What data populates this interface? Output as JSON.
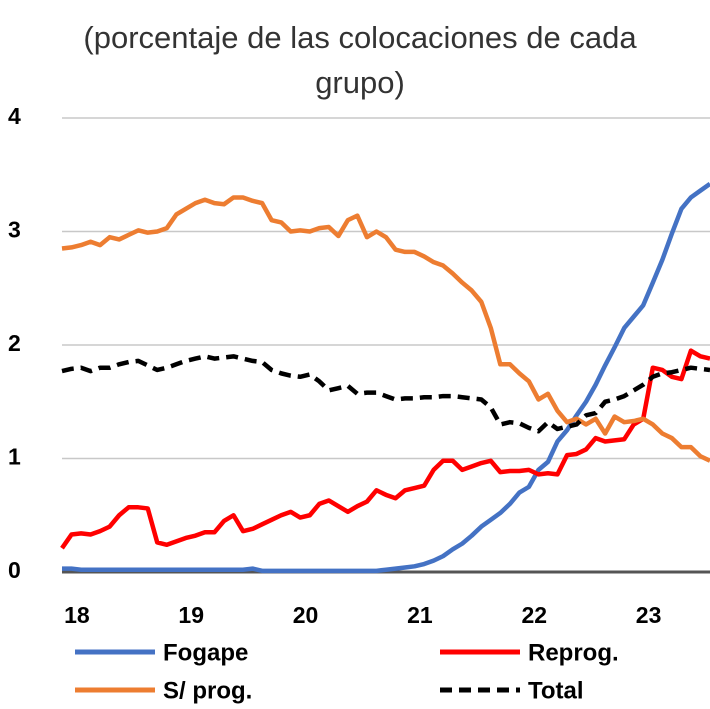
{
  "chart_data": {
    "type": "line",
    "title": "(porcentaje de las colocaciones de cada grupo)",
    "x": [
      18,
      18.083,
      18.167,
      18.25,
      18.333,
      18.417,
      18.5,
      18.583,
      18.667,
      18.75,
      18.833,
      18.917,
      19,
      19.083,
      19.167,
      19.25,
      19.333,
      19.417,
      19.5,
      19.583,
      19.667,
      19.75,
      19.833,
      19.917,
      20,
      20.083,
      20.167,
      20.25,
      20.333,
      20.417,
      20.5,
      20.583,
      20.667,
      20.75,
      20.833,
      20.917,
      21,
      21.083,
      21.167,
      21.25,
      21.333,
      21.417,
      21.5,
      21.583,
      21.667,
      21.75,
      21.833,
      21.917,
      22,
      22.083,
      22.167,
      22.25,
      22.333,
      22.417,
      22.5,
      22.583,
      22.667,
      22.75,
      22.833,
      22.917,
      23,
      23.083,
      23.167,
      23.25,
      23.333,
      23.417,
      23.5,
      23.583,
      23.667
    ],
    "series": [
      {
        "name": "Fogape",
        "color": "#4472c4",
        "values": [
          0.03,
          0.03,
          0.02,
          0.02,
          0.02,
          0.02,
          0.02,
          0.02,
          0.02,
          0.02,
          0.02,
          0.02,
          0.02,
          0.02,
          0.02,
          0.02,
          0.02,
          0.02,
          0.02,
          0.02,
          0.03,
          0.01,
          0.01,
          0.01,
          0.01,
          0.01,
          0.01,
          0.01,
          0.01,
          0.01,
          0.01,
          0.01,
          0.01,
          0.01,
          0.02,
          0.03,
          0.04,
          0.05,
          0.07,
          0.1,
          0.14,
          0.2,
          0.25,
          0.32,
          0.4,
          0.46,
          0.52,
          0.6,
          0.7,
          0.75,
          0.9,
          0.97,
          1.15,
          1.25,
          1.38,
          1.5,
          1.65,
          1.82,
          1.98,
          2.15,
          2.25,
          2.35,
          2.55,
          2.75,
          2.98,
          3.2,
          3.3,
          3.36,
          3.42
        ]
      },
      {
        "name": "Reprog.",
        "color": "#ff0000",
        "values": [
          0.21,
          0.33,
          0.34,
          0.33,
          0.36,
          0.4,
          0.5,
          0.57,
          0.57,
          0.56,
          0.26,
          0.24,
          0.27,
          0.3,
          0.32,
          0.35,
          0.35,
          0.45,
          0.5,
          0.36,
          0.38,
          0.42,
          0.46,
          0.5,
          0.53,
          0.48,
          0.5,
          0.6,
          0.63,
          0.58,
          0.53,
          0.58,
          0.62,
          0.72,
          0.68,
          0.65,
          0.72,
          0.74,
          0.76,
          0.9,
          0.98,
          0.98,
          0.9,
          0.93,
          0.96,
          0.98,
          0.88,
          0.89,
          0.89,
          0.9,
          0.86,
          0.87,
          0.86,
          1.03,
          1.04,
          1.08,
          1.18,
          1.15,
          1.16,
          1.17,
          1.3,
          1.35,
          1.8,
          1.78,
          1.72,
          1.7,
          1.95,
          1.9,
          1.88
        ]
      },
      {
        "name": "S/ prog.",
        "color": "#ed7d31",
        "values": [
          2.85,
          2.86,
          2.88,
          2.91,
          2.88,
          2.95,
          2.93,
          2.97,
          3.01,
          2.99,
          3.0,
          3.03,
          3.15,
          3.2,
          3.25,
          3.28,
          3.25,
          3.24,
          3.3,
          3.3,
          3.27,
          3.25,
          3.1,
          3.08,
          3.0,
          3.01,
          3.0,
          3.03,
          3.04,
          2.96,
          3.1,
          3.14,
          2.95,
          3.0,
          2.95,
          2.84,
          2.82,
          2.82,
          2.78,
          2.73,
          2.7,
          2.63,
          2.55,
          2.48,
          2.38,
          2.15,
          1.83,
          1.83,
          1.75,
          1.68,
          1.52,
          1.57,
          1.42,
          1.32,
          1.35,
          1.3,
          1.35,
          1.22,
          1.37,
          1.32,
          1.33,
          1.35,
          1.3,
          1.22,
          1.18,
          1.1,
          1.1,
          1.02,
          0.98
        ]
      },
      {
        "name": "Total",
        "color": "#000000",
        "dashed": true,
        "values": [
          1.77,
          1.79,
          1.8,
          1.77,
          1.8,
          1.8,
          1.83,
          1.85,
          1.86,
          1.82,
          1.78,
          1.8,
          1.83,
          1.86,
          1.88,
          1.9,
          1.88,
          1.89,
          1.9,
          1.88,
          1.86,
          1.85,
          1.78,
          1.75,
          1.73,
          1.72,
          1.74,
          1.68,
          1.6,
          1.62,
          1.64,
          1.57,
          1.58,
          1.58,
          1.55,
          1.52,
          1.53,
          1.53,
          1.54,
          1.54,
          1.55,
          1.55,
          1.54,
          1.53,
          1.52,
          1.45,
          1.3,
          1.32,
          1.31,
          1.27,
          1.24,
          1.32,
          1.26,
          1.28,
          1.3,
          1.38,
          1.4,
          1.5,
          1.52,
          1.55,
          1.6,
          1.65,
          1.72,
          1.75,
          1.76,
          1.78,
          1.8,
          1.79,
          1.78
        ]
      }
    ],
    "xlim": [
      18,
      23.667
    ],
    "xticks": [
      {
        "value": 18.13,
        "label": "18"
      },
      {
        "value": 19.13,
        "label": "19"
      },
      {
        "value": 20.13,
        "label": "20"
      },
      {
        "value": 21.13,
        "label": "21"
      },
      {
        "value": 22.13,
        "label": "22"
      },
      {
        "value": 23.13,
        "label": "23"
      }
    ],
    "ylim": [
      0,
      4
    ],
    "yticks": [
      0,
      1,
      2,
      3,
      4
    ],
    "grid": true
  }
}
